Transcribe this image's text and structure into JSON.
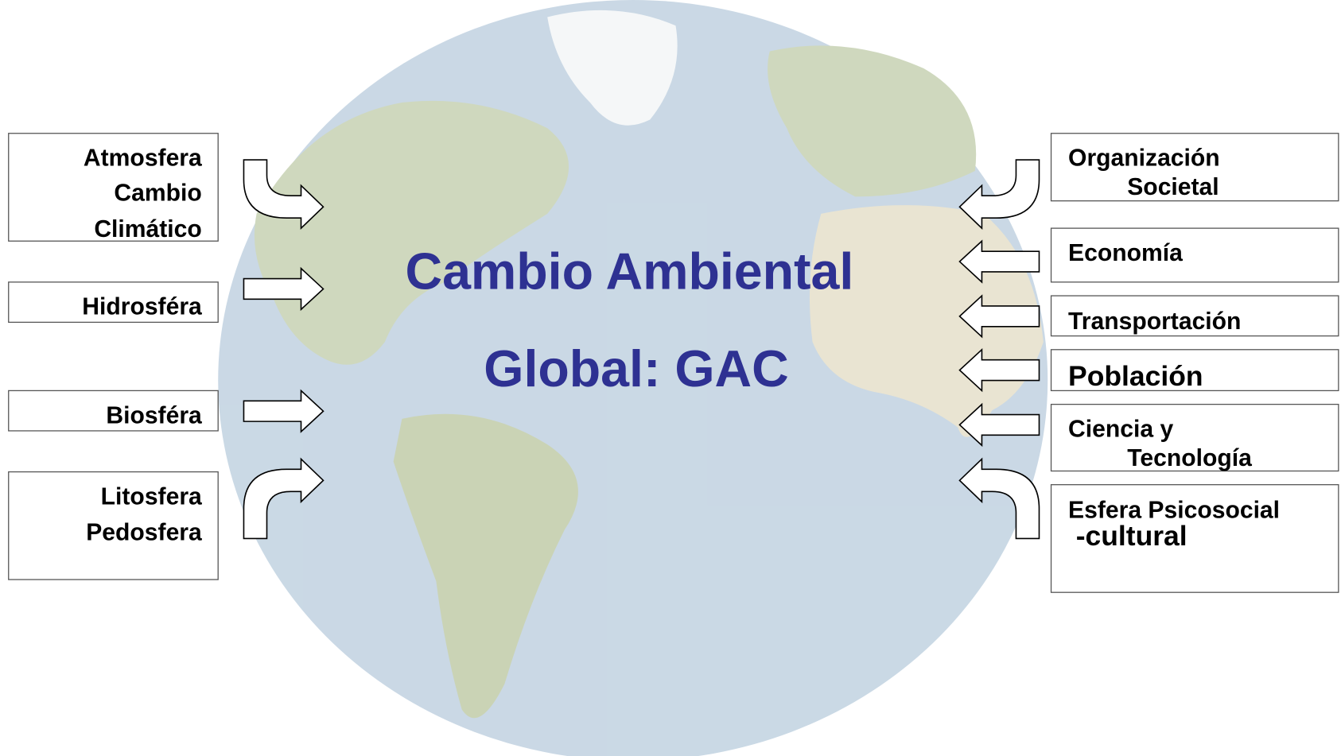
{
  "title": {
    "lines": [
      "Cambio Ambiental",
      "Global: GAC"
    ]
  },
  "left_boxes": [
    {
      "lines": [
        "Atmosfera",
        "Cambio",
        "Climático"
      ]
    },
    {
      "lines": [
        "Hidrosféra"
      ]
    },
    {
      "lines": [
        "Biosféra"
      ]
    },
    {
      "lines": [
        "Litosfera",
        "Pedosfera"
      ]
    }
  ],
  "right_boxes": [
    {
      "lines": [
        "Organización",
        "Societal"
      ]
    },
    {
      "lines": [
        "Economía"
      ]
    },
    {
      "lines": [
        "Transportación"
      ]
    },
    {
      "lines": [
        "Población"
      ]
    },
    {
      "lines": [
        "Ciencia y",
        "Tecnología"
      ]
    },
    {
      "lines": [
        "Esfera Psicosocial",
        "-cultural"
      ]
    }
  ]
}
